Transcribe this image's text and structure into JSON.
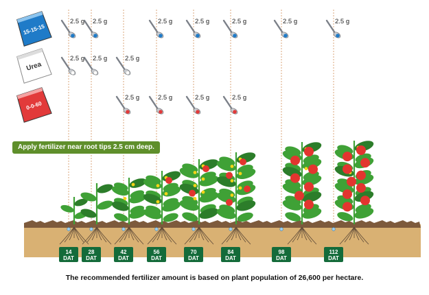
{
  "fertilizers": [
    {
      "key": "npk",
      "label": "15-15-15",
      "color": "#1f7bc8",
      "label_color": "#ffffff",
      "stripe": "#8cc4ee"
    },
    {
      "key": "urea",
      "label": "Urea",
      "color": "#ffffff",
      "label_color": "#333333",
      "stripe": "#dddddd"
    },
    {
      "key": "potash",
      "label": "0-0-60",
      "color": "#e23a3a",
      "label_color": "#ffffff",
      "stripe": "#f5a2a2"
    }
  ],
  "dose_label": "2.5 g",
  "applications": [
    {
      "fertilizer": "npk",
      "dat": [
        14,
        28,
        56,
        70,
        84,
        98,
        112
      ]
    },
    {
      "fertilizer": "urea",
      "dat": [
        14,
        28,
        42
      ]
    },
    {
      "fertilizer": "potash",
      "dat": [
        42,
        56,
        70,
        84
      ]
    }
  ],
  "timeline": [
    {
      "day": "14",
      "unit": "DAT"
    },
    {
      "day": "28",
      "unit": "DAT"
    },
    {
      "day": "42",
      "unit": "DAT"
    },
    {
      "day": "56",
      "unit": "DAT"
    },
    {
      "day": "70",
      "unit": "DAT"
    },
    {
      "day": "84",
      "unit": "DAT"
    },
    {
      "day": "98",
      "unit": "DAT"
    },
    {
      "day": "112",
      "unit": "DAT"
    }
  ],
  "instruction": "Apply fertilizer near root tips 2.5 cm deep.",
  "caption": "The recommended fertilizer amount is based on plant population of 26,600 per hectare.",
  "colors": {
    "soil": "#d9b173",
    "soil_top": "#7d5a3c",
    "plant": "#3fa136",
    "leaf_dark": "#2c7d2a",
    "flower": "#f5d417",
    "fruit": "#e2352f",
    "guide": "#d79b6a",
    "dat_badge": "#146b3a",
    "root": "#5e4a38"
  }
}
